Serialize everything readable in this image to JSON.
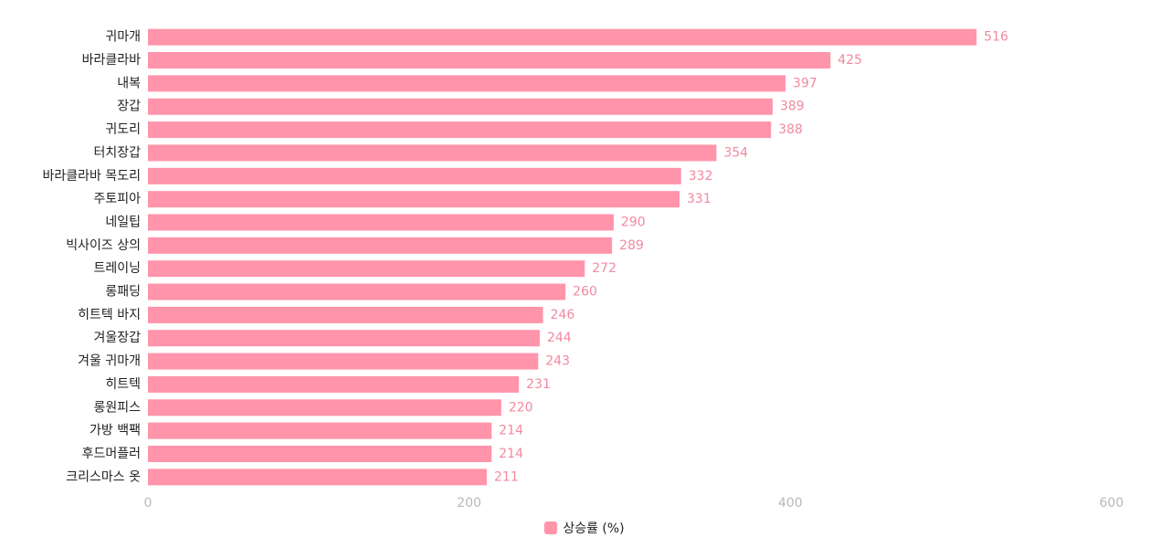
{
  "chart_data": {
    "type": "bar",
    "orientation": "horizontal",
    "categories": [
      "귀마개",
      "바라클라바",
      "내복",
      "장갑",
      "귀도리",
      "터치장갑",
      "바라클라바 목도리",
      "주토피아",
      "네일팁",
      "빅사이즈 상의",
      "트레이닝",
      "롱패딩",
      "히트텍 바지",
      "겨울장갑",
      "겨울 귀마개",
      "히트텍",
      "롱원피스",
      "가방 백팩",
      "후드머플러",
      "크리스마스 옷"
    ],
    "series": [
      {
        "name": "상승률 (%)",
        "values": [
          516,
          425,
          397,
          389,
          388,
          354,
          332,
          331,
          290,
          289,
          272,
          260,
          246,
          244,
          243,
          231,
          220,
          214,
          214,
          211
        ],
        "color": "#ff94aa"
      }
    ],
    "xlim": [
      0,
      600
    ],
    "xticks": [
      "0",
      "200",
      "400",
      "600"
    ],
    "grid": false,
    "legend_position": "bottom",
    "value_label_color": "#f08aa0"
  }
}
